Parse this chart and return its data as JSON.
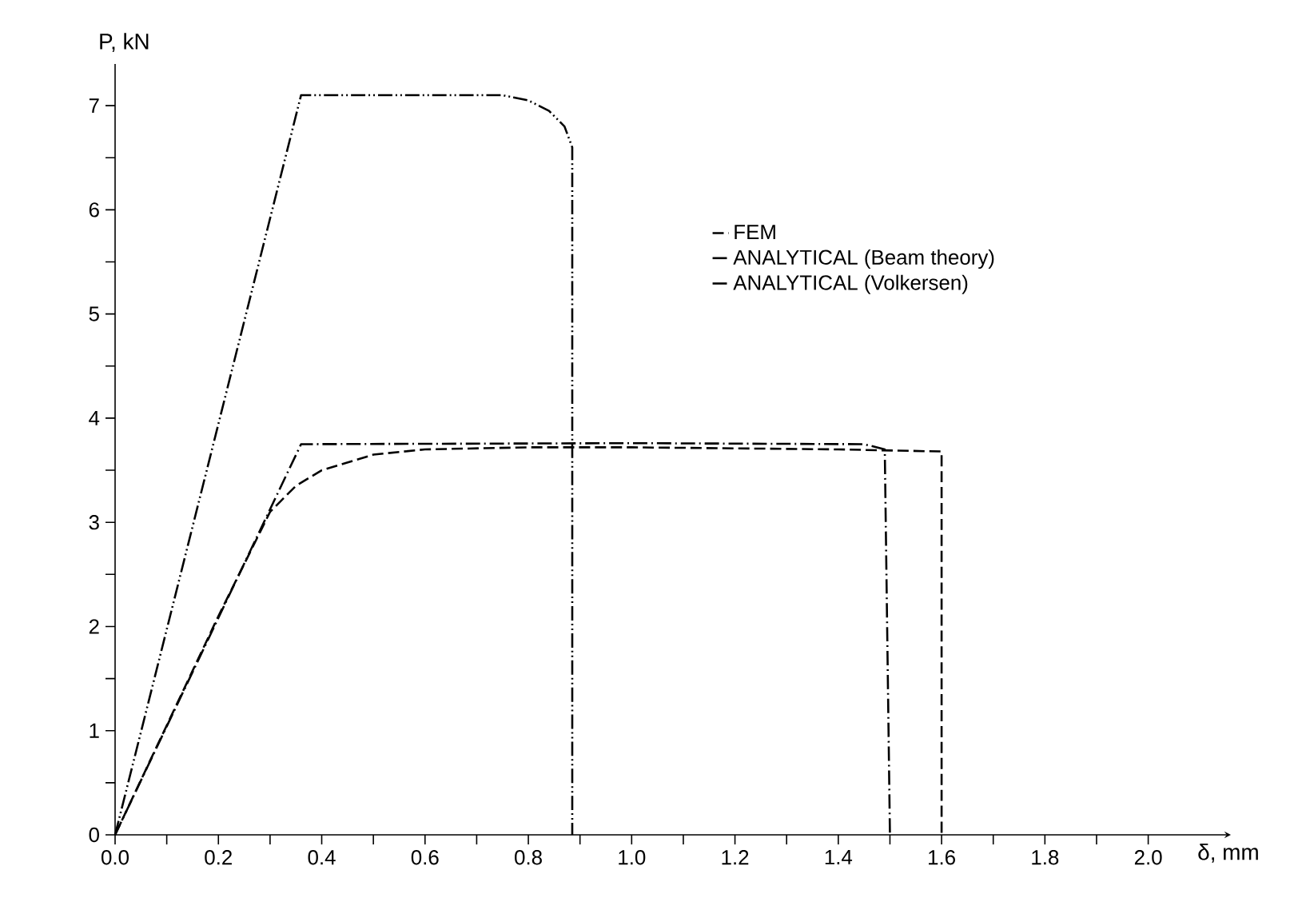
{
  "chart_data": {
    "type": "line",
    "xlabel": "δ, mm",
    "ylabel": "P, kN",
    "xlim": [
      0,
      2.16
    ],
    "ylim": [
      0,
      7.4
    ],
    "xticks": [
      {
        "value": 0,
        "label": "0.0"
      },
      {
        "value": 0.1,
        "label": null
      },
      {
        "value": 0.2,
        "label": "0.2"
      },
      {
        "value": 0.3,
        "label": null
      },
      {
        "value": 0.4,
        "label": "0.4"
      },
      {
        "value": 0.5,
        "label": null
      },
      {
        "value": 0.6,
        "label": "0.6"
      },
      {
        "value": 0.7,
        "label": null
      },
      {
        "value": 0.8,
        "label": "0.8"
      },
      {
        "value": 0.9,
        "label": null
      },
      {
        "value": 1.0,
        "label": "1.0"
      },
      {
        "value": 1.1,
        "label": null
      },
      {
        "value": 1.2,
        "label": "1.2"
      },
      {
        "value": 1.3,
        "label": null
      },
      {
        "value": 1.4,
        "label": "1.4"
      },
      {
        "value": 1.5,
        "label": null
      },
      {
        "value": 1.6,
        "label": "1.6"
      },
      {
        "value": 1.7,
        "label": null
      },
      {
        "value": 1.8,
        "label": "1.8"
      },
      {
        "value": 1.9,
        "label": null
      },
      {
        "value": 2.0,
        "label": "2.0"
      }
    ],
    "yticks": [
      0,
      {
        "value": 0.5,
        "label": null
      },
      1,
      {
        "value": 1.5,
        "label": null
      },
      2,
      {
        "value": 2.5,
        "label": null
      },
      3,
      {
        "value": 3.5,
        "label": null
      },
      4,
      {
        "value": 4.5,
        "label": null
      },
      5,
      {
        "value": 5.5,
        "label": null
      },
      6,
      {
        "value": 6.5,
        "label": null
      },
      7
    ],
    "grid": false,
    "legend": "right",
    "marker": "none",
    "series": [
      {
        "name": "FEM",
        "color": "#000000",
        "line_style": "dashed",
        "x": [
          0,
          0.1,
          0.2,
          0.3,
          0.35,
          0.4,
          0.5,
          0.6,
          0.8,
          1.0,
          1.4,
          1.6,
          1.6
        ],
        "values": [
          0,
          1.05,
          2.1,
          3.1,
          3.35,
          3.5,
          3.65,
          3.7,
          3.72,
          3.72,
          3.7,
          3.68,
          0
        ]
      },
      {
        "name": "ANALYTICAL (Beam theory)",
        "color": "#000000",
        "line_style": "dashdot",
        "x": [
          0,
          0.36,
          1.0,
          1.45,
          1.49,
          1.5
        ],
        "values": [
          0,
          3.75,
          3.76,
          3.75,
          3.7,
          0
        ]
      },
      {
        "name": "ANALYTICAL (Volkersen)",
        "color": "#000000",
        "line_style": "dashdotdot",
        "x": [
          0,
          0.36,
          0.75,
          0.8,
          0.84,
          0.87,
          0.885,
          0.885
        ],
        "values": [
          0,
          7.1,
          7.1,
          7.05,
          6.95,
          6.8,
          6.6,
          0
        ]
      }
    ]
  }
}
